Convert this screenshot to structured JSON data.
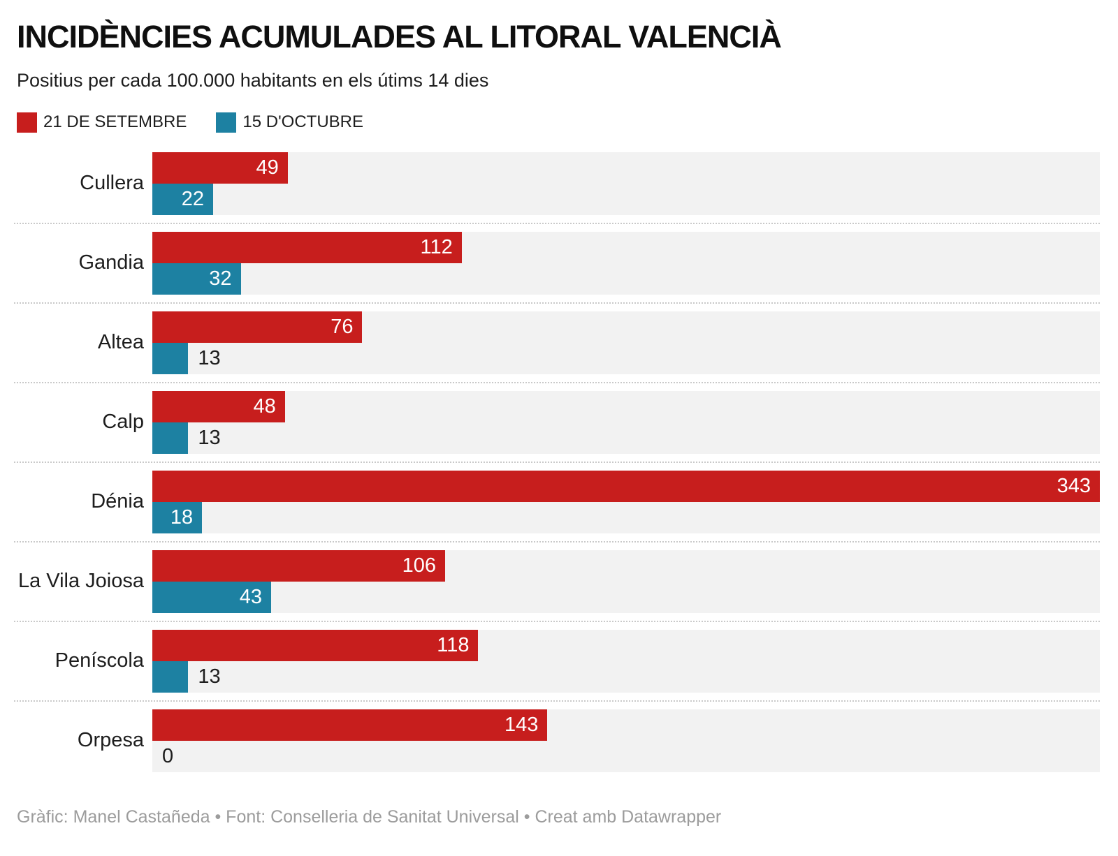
{
  "title": "INCIDÈNCIES ACUMULADES AL LITORAL VALENCIÀ",
  "subtitle": "Positius per cada 100.000 habitants en els útims 14 dies",
  "legend": [
    {
      "label": "21 DE SETEMBRE",
      "color": "#c71e1d"
    },
    {
      "label": "15 D'OCTUBRE",
      "color": "#1d81a2"
    }
  ],
  "footer": "Gràfic: Manel Castañeda • Font: Conselleria de Sanitat Universal • Creat amb Datawrapper",
  "chart_data": {
    "type": "bar",
    "orientation": "horizontal",
    "title": "INCIDÈNCIES ACUMULADES AL LITORAL VALENCIÀ",
    "subtitle": "Positius per cada 100.000 habitants en els útims 14 dies",
    "categories": [
      "Cullera",
      "Gandia",
      "Altea",
      "Calp",
      "Dénia",
      "La Vila Joiosa",
      "Peníscola",
      "Orpesa"
    ],
    "series": [
      {
        "name": "21 DE SETEMBRE",
        "color": "#c71e1d",
        "values": [
          49,
          112,
          76,
          48,
          343,
          106,
          118,
          143
        ]
      },
      {
        "name": "15 D'OCTUBRE",
        "color": "#1d81a2",
        "values": [
          22,
          32,
          13,
          13,
          18,
          43,
          13,
          0
        ]
      }
    ],
    "xmax": 343,
    "track_color": "#f2f2f2",
    "grid": "off",
    "legend_position": "top-left",
    "value_labels": "on-bars"
  }
}
